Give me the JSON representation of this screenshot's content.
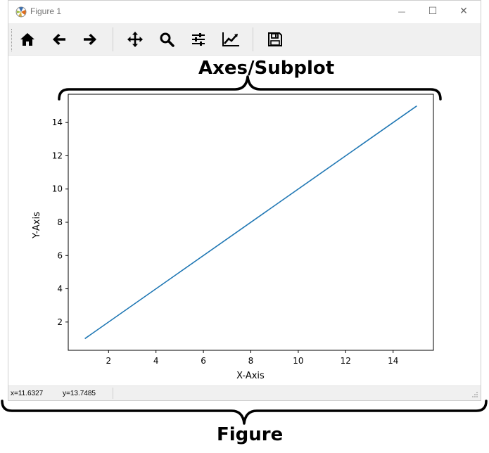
{
  "window": {
    "title": "Figure 1",
    "controls": {
      "minimize": "—",
      "maximize": "☐",
      "close": "✕"
    }
  },
  "toolbar": {
    "buttons": [
      {
        "name": "home",
        "icon": "home-icon"
      },
      {
        "name": "back",
        "icon": "arrow-left-icon"
      },
      {
        "name": "forward",
        "icon": "arrow-right-icon"
      },
      {
        "name": "pan",
        "icon": "move-icon"
      },
      {
        "name": "zoom",
        "icon": "magnifier-icon"
      },
      {
        "name": "configure-subplots",
        "icon": "sliders-icon"
      },
      {
        "name": "edit-axis",
        "icon": "line-chart-icon"
      },
      {
        "name": "save",
        "icon": "floppy-disk-icon"
      }
    ]
  },
  "chart_data": {
    "type": "line",
    "x": [
      1,
      15
    ],
    "series": [
      {
        "values": [
          1,
          15
        ],
        "color": "#1f77b4"
      }
    ],
    "xlabel": "X-Axis",
    "ylabel": "Y-Axis",
    "xlim": [
      0.3,
      15.7
    ],
    "ylim": [
      0.3,
      15.7
    ],
    "xticks": [
      2,
      4,
      6,
      8,
      10,
      12,
      14
    ],
    "yticks": [
      2,
      4,
      6,
      8,
      10,
      12,
      14
    ],
    "grid": false
  },
  "status": {
    "x": "x=11.6327",
    "y": "y=13.7485"
  },
  "annotations": {
    "axes_label": "Axes/Subplot",
    "figure_label": "Figure"
  }
}
